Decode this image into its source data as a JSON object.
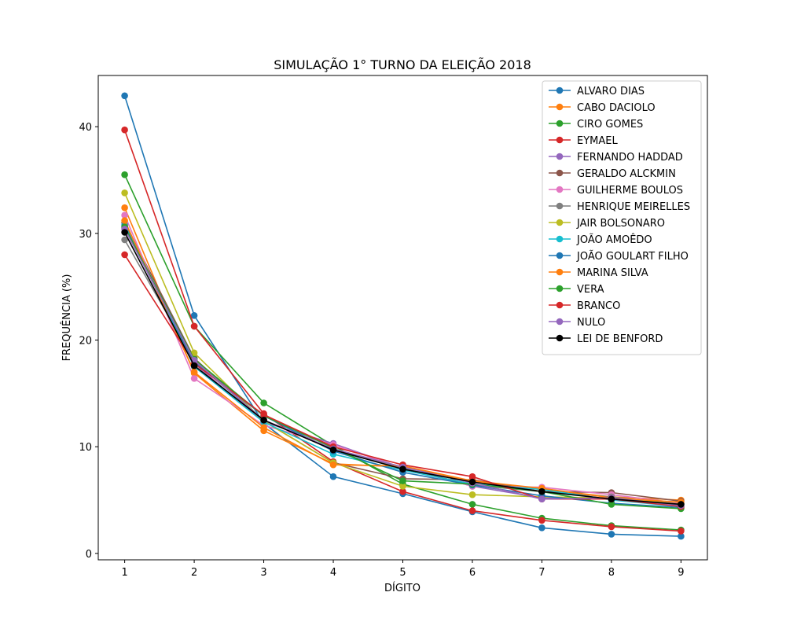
{
  "chart_data": {
    "type": "line",
    "title": "SIMULAÇÃO 1° TURNO DA ELEIÇÃO 2018",
    "xlabel": "DÍGITO",
    "ylabel": "FREQUÊNCIA (%)",
    "x": [
      1,
      2,
      3,
      4,
      5,
      6,
      7,
      8,
      9
    ],
    "xlim": [
      0.62,
      9.38
    ],
    "ylim": [
      -0.6,
      44.8
    ],
    "yticks": [
      0,
      10,
      20,
      30,
      40
    ],
    "grid": false,
    "legend_position": "top-right",
    "series": [
      {
        "name": "ALVARO DIAS",
        "color": "#1f77b4",
        "values": [
          42.9,
          22.3,
          12.2,
          7.2,
          5.6,
          3.9,
          2.4,
          1.8,
          1.6
        ]
      },
      {
        "name": "CABO DACIOLO",
        "color": "#ff7f0e",
        "values": [
          32.4,
          16.9,
          11.5,
          8.4,
          8.1,
          6.7,
          6.0,
          5.3,
          5.0
        ]
      },
      {
        "name": "CIRO GOMES",
        "color": "#2ca02c",
        "values": [
          35.5,
          21.3,
          14.1,
          10.1,
          6.5,
          4.6,
          3.3,
          2.6,
          2.2
        ]
      },
      {
        "name": "EYMAEL",
        "color": "#d62728",
        "values": [
          39.7,
          21.3,
          13.1,
          8.6,
          5.8,
          4.0,
          3.1,
          2.5,
          2.1
        ]
      },
      {
        "name": "FERNANDO HADDAD",
        "color": "#9467bd",
        "values": [
          30.5,
          17.8,
          12.3,
          10.3,
          8.0,
          6.3,
          5.2,
          5.1,
          4.5
        ]
      },
      {
        "name": "GERALDO ALCKMIN",
        "color": "#8c564b",
        "values": [
          31.0,
          18.3,
          12.4,
          8.5,
          7.0,
          6.9,
          5.8,
          5.7,
          4.9
        ]
      },
      {
        "name": "GUILHERME BOULOS",
        "color": "#e377c2",
        "values": [
          31.7,
          16.4,
          12.0,
          10.2,
          8.0,
          6.3,
          6.2,
          5.5,
          4.7
        ]
      },
      {
        "name": "HENRIQUE MEIRELLES",
        "color": "#7f7f7f",
        "values": [
          29.4,
          18.0,
          12.5,
          9.8,
          8.0,
          6.4,
          5.8,
          5.3,
          4.6
        ]
      },
      {
        "name": "JAIR BOLSONARO",
        "color": "#bcbd22",
        "values": [
          33.8,
          18.8,
          12.4,
          8.5,
          6.3,
          5.5,
          5.3,
          5.2,
          4.6
        ]
      },
      {
        "name": "JOÃO AMOÊDO",
        "color": "#17becf",
        "values": [
          30.8,
          17.5,
          12.3,
          9.3,
          7.8,
          6.5,
          6.0,
          5.0,
          4.4
        ]
      },
      {
        "name": "JOÃO GOULART FILHO",
        "color": "#1f77b4",
        "values": [
          30.7,
          17.9,
          12.9,
          9.6,
          7.6,
          6.4,
          5.4,
          4.7,
          4.3
        ]
      },
      {
        "name": "MARINA SILVA",
        "color": "#ff7f0e",
        "values": [
          31.2,
          17.0,
          11.8,
          8.3,
          8.2,
          6.8,
          6.1,
          5.2,
          4.8
        ]
      },
      {
        "name": "VERA",
        "color": "#2ca02c",
        "values": [
          30.6,
          18.2,
          12.9,
          9.9,
          6.8,
          6.5,
          5.8,
          4.6,
          4.2
        ]
      },
      {
        "name": "BRANCO",
        "color": "#d62728",
        "values": [
          28.0,
          17.8,
          13.0,
          10.0,
          8.3,
          7.2,
          5.1,
          5.1,
          4.4
        ]
      },
      {
        "name": "NULO",
        "color": "#9467bd",
        "values": [
          30.4,
          18.1,
          12.5,
          9.8,
          8.1,
          6.6,
          5.1,
          5.2,
          4.5
        ]
      },
      {
        "name": "LEI DE BENFORD",
        "color": "#000000",
        "values": [
          30.1,
          17.6,
          12.5,
          9.7,
          7.9,
          6.7,
          5.8,
          5.1,
          4.6
        ]
      }
    ]
  }
}
